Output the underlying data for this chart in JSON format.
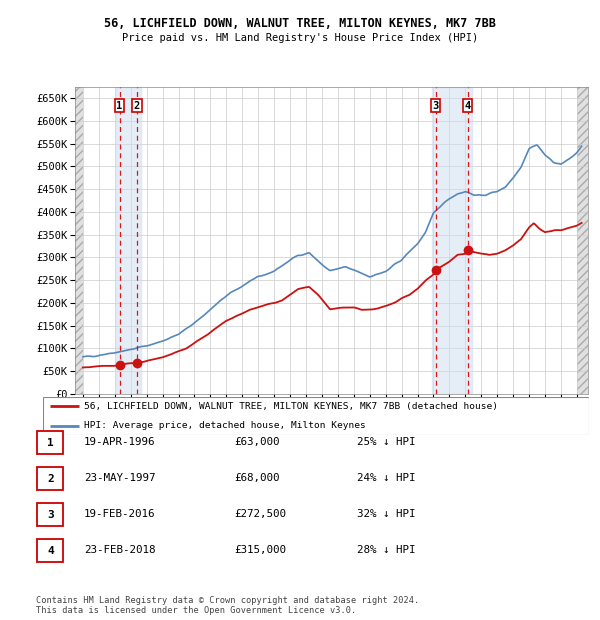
{
  "title1": "56, LICHFIELD DOWN, WALNUT TREE, MILTON KEYNES, MK7 7BB",
  "title2": "Price paid vs. HM Land Registry's House Price Index (HPI)",
  "ylim": [
    0,
    675000
  ],
  "yticks": [
    0,
    50000,
    100000,
    150000,
    200000,
    250000,
    300000,
    350000,
    400000,
    450000,
    500000,
    550000,
    600000,
    650000
  ],
  "ytick_labels": [
    "£0",
    "£50K",
    "£100K",
    "£150K",
    "£200K",
    "£250K",
    "£300K",
    "£350K",
    "£400K",
    "£450K",
    "£500K",
    "£550K",
    "£600K",
    "£650K"
  ],
  "xlim_start": 1993.5,
  "xlim_end": 2025.7,
  "xticks": [
    1994,
    1995,
    1996,
    1997,
    1998,
    1999,
    2000,
    2001,
    2002,
    2003,
    2004,
    2005,
    2006,
    2007,
    2008,
    2009,
    2010,
    2011,
    2012,
    2013,
    2014,
    2015,
    2016,
    2017,
    2018,
    2019,
    2020,
    2021,
    2022,
    2023,
    2024,
    2025
  ],
  "hpi_color": "#5588bb",
  "price_color": "#cc1111",
  "shade_color": "#ccddef",
  "transactions": [
    {
      "date": 1996.3,
      "price": 63000,
      "label": "1"
    },
    {
      "date": 1997.39,
      "price": 68000,
      "label": "2"
    },
    {
      "date": 2016.13,
      "price": 272500,
      "label": "3"
    },
    {
      "date": 2018.15,
      "price": 315000,
      "label": "4"
    }
  ],
  "legend_entries": [
    "56, LICHFIELD DOWN, WALNUT TREE, MILTON KEYNES, MK7 7BB (detached house)",
    "HPI: Average price, detached house, Milton Keynes"
  ],
  "table_rows": [
    {
      "num": "1",
      "date": "19-APR-1996",
      "price": "£63,000",
      "hpi": "25% ↓ HPI"
    },
    {
      "num": "2",
      "date": "23-MAY-1997",
      "price": "£68,000",
      "hpi": "24% ↓ HPI"
    },
    {
      "num": "3",
      "date": "19-FEB-2016",
      "price": "£272,500",
      "hpi": "32% ↓ HPI"
    },
    {
      "num": "4",
      "date": "23-FEB-2018",
      "price": "£315,000",
      "hpi": "28% ↓ HPI"
    }
  ],
  "footnote": "Contains HM Land Registry data © Crown copyright and database right 2024.\nThis data is licensed under the Open Government Licence v3.0.",
  "grid_color": "#cccccc",
  "hatch_color": "#cccccc"
}
